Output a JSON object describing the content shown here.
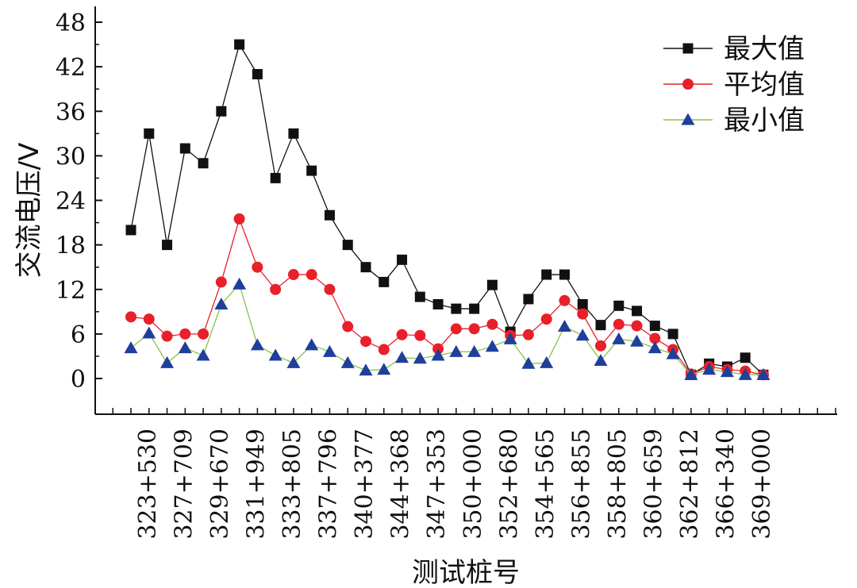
{
  "chart_data": {
    "type": "line",
    "title": "",
    "xlabel": "测试桩号",
    "ylabel": "交流电压/V",
    "ylim": [
      -6,
      50
    ],
    "yticks": [
      0,
      6,
      12,
      18,
      24,
      30,
      36,
      42,
      48
    ],
    "x_tick_labels": [
      "323+530",
      "327+709",
      "329+670",
      "331+949",
      "333+805",
      "337+796",
      "340+377",
      "344+368",
      "347+353",
      "350+000",
      "352+680",
      "354+565",
      "356+855",
      "358+805",
      "360+659",
      "362+812",
      "366+340",
      "369+000"
    ],
    "legend": [
      "最大值",
      "平均值",
      "最小值"
    ],
    "series": [
      {
        "name": "最大值",
        "color": "#111111",
        "marker": "square",
        "values": [
          20,
          33,
          18,
          31,
          29,
          36,
          45,
          41,
          27,
          33,
          28,
          22,
          18,
          15,
          13,
          16,
          11,
          10,
          9.4,
          9.4,
          12.6,
          6.3,
          10.7,
          14,
          14,
          10,
          7.2,
          9.8,
          9.1,
          7.1,
          6,
          0.5,
          2,
          1.6,
          2.8,
          0.5
        ]
      },
      {
        "name": "平均值",
        "color": "#e8202a",
        "marker": "circle",
        "values": [
          8.3,
          8,
          5.7,
          6,
          6,
          13,
          21.5,
          15,
          12,
          14,
          14,
          12,
          7,
          5,
          3.9,
          5.9,
          5.8,
          4,
          6.7,
          6.7,
          7.3,
          5.8,
          5.9,
          8,
          10.5,
          8.7,
          4.4,
          7.3,
          7.1,
          5.4,
          3.9,
          0.6,
          1.6,
          1.2,
          1,
          0.5
        ]
      },
      {
        "name": "最小值",
        "color": "#1f3f9c",
        "line_color": "#88c34a",
        "marker": "triangle",
        "values": [
          4.1,
          6.1,
          2.1,
          4.1,
          3.1,
          10,
          12.7,
          4.5,
          3.1,
          2.1,
          4.5,
          3.6,
          2.1,
          1.1,
          1.2,
          2.8,
          2.7,
          3.1,
          3.6,
          3.6,
          4.3,
          5.3,
          2,
          2.1,
          7,
          5.8,
          2.4,
          5.3,
          5,
          4.1,
          3.3,
          0.5,
          1.2,
          0.9,
          0.5,
          0.5
        ]
      }
    ]
  }
}
